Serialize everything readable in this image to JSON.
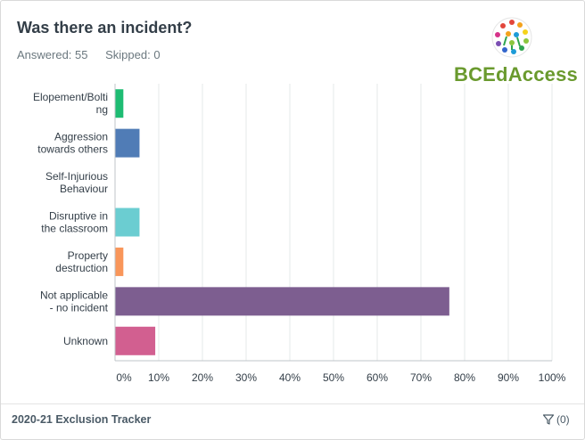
{
  "header": {
    "question": "Was there an incident?",
    "answered": "Answered: 55",
    "skipped": "Skipped: 0"
  },
  "logo": {
    "text": "BCEdAccess",
    "icon": "people-circle-logo-icon"
  },
  "chart_data": {
    "type": "bar",
    "orientation": "horizontal",
    "categories": [
      [
        "Elopement/Bolti",
        "ng"
      ],
      [
        "Aggression",
        "towards others"
      ],
      [
        "Self-Injurious",
        "Behaviour"
      ],
      [
        "Disruptive in",
        "the classroom"
      ],
      [
        "Property",
        "destruction"
      ],
      [
        "Not applicable",
        "- no incident"
      ],
      [
        "Unknown"
      ]
    ],
    "values": [
      1.8,
      5.5,
      0,
      5.5,
      1.8,
      76.4,
      9.1
    ],
    "colors": [
      "#1ebc73",
      "#507cb6",
      "#f9be00",
      "#6bcdd1",
      "#f9965a",
      "#7d5e90",
      "#d25f90"
    ],
    "xlim": [
      0,
      100
    ],
    "xticks": [
      "0%",
      "10%",
      "20%",
      "30%",
      "40%",
      "50%",
      "60%",
      "70%",
      "80%",
      "90%",
      "100%"
    ],
    "grid": true
  },
  "footer": {
    "title": "2020-21 Exclusion Tracker",
    "filter_count": "(0)",
    "filter_icon": "filter-funnel-icon"
  }
}
